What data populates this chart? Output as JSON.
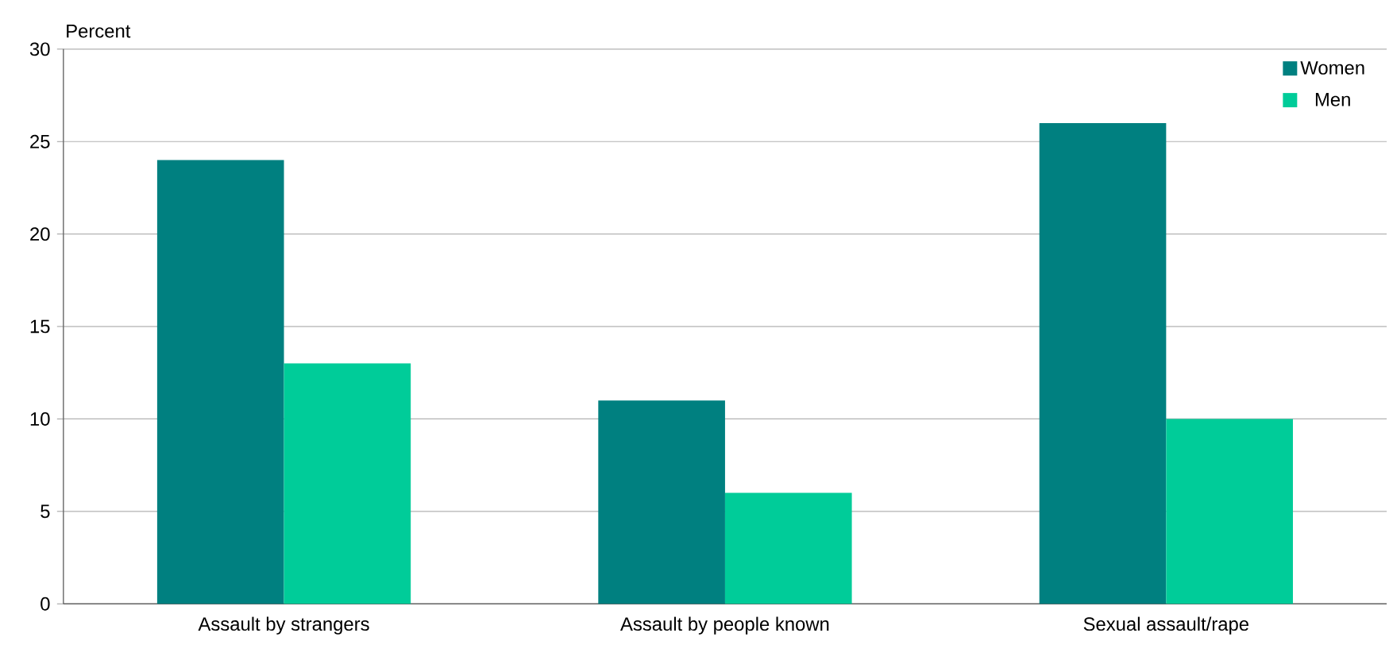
{
  "chart_data": {
    "type": "bar",
    "ylabel": "Percent",
    "categories": [
      "Assault by strangers",
      "Assault by people known",
      "Sexual assault/rape"
    ],
    "series": [
      {
        "name": "Women",
        "color": "#008080",
        "values": [
          24,
          11,
          26
        ]
      },
      {
        "name": "Men",
        "color": "#00cc99",
        "values": [
          13,
          6,
          10
        ]
      }
    ],
    "ylim": [
      0,
      30
    ],
    "yticks": [
      0,
      5,
      10,
      15,
      20,
      25,
      30
    ],
    "grid": "y",
    "legend": "top right"
  }
}
